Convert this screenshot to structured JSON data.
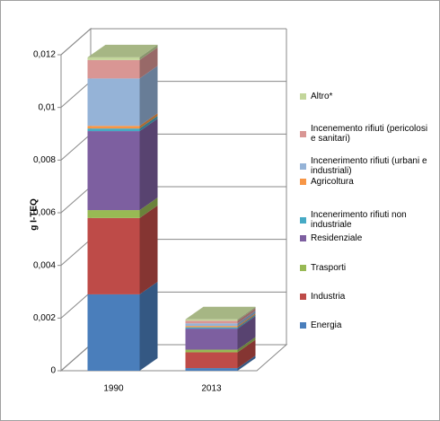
{
  "chart_data": {
    "type": "bar3d_stacked",
    "y_label": "g I-TEQ",
    "categories": [
      "1990",
      "2013"
    ],
    "series": [
      {
        "name": "Energia",
        "color": "#4a7ebb",
        "values": [
          0.0029,
          0.0001
        ]
      },
      {
        "name": "Industria",
        "color": "#be4b48",
        "values": [
          0.0029,
          0.0006
        ]
      },
      {
        "name": "Trasporti",
        "color": "#98b954",
        "values": [
          0.0003,
          0.0001
        ]
      },
      {
        "name": "Residenziale",
        "color": "#7d5fa0",
        "values": [
          0.003,
          0.0008
        ]
      },
      {
        "name": "Incenerimento rifiuti non industriale",
        "color": "#46aac5",
        "values": [
          0.0001,
          5e-05
        ]
      },
      {
        "name": "Agricoltura",
        "color": "#f79646",
        "values": [
          0.0001,
          5e-05
        ]
      },
      {
        "name": "Incenerimento rifiuti (urbani e industriali)",
        "color": "#95b3d7",
        "values": [
          0.0018,
          0.0001
        ]
      },
      {
        "name": "Incenemento rifiuti (pericolosi e sanitari)",
        "color": "#d99694",
        "values": [
          0.0007,
          0.0001
        ]
      },
      {
        "name": "Altro*",
        "color": "#c3d69b",
        "values": [
          0.0001,
          5e-05
        ]
      }
    ],
    "ylim": [
      0,
      0.012
    ],
    "yticks": [
      0,
      {
        "value": 0.002,
        "label": "0,002"
      },
      {
        "value": 0.004,
        "label": "0,004"
      },
      {
        "value": 0.006,
        "label": "0,006"
      },
      {
        "value": 0.008,
        "label": "0,008"
      },
      {
        "value": 0.01,
        "label": "0,01"
      },
      {
        "value": 0.012,
        "label": "0,012"
      }
    ],
    "grid": true,
    "legend": "right"
  }
}
